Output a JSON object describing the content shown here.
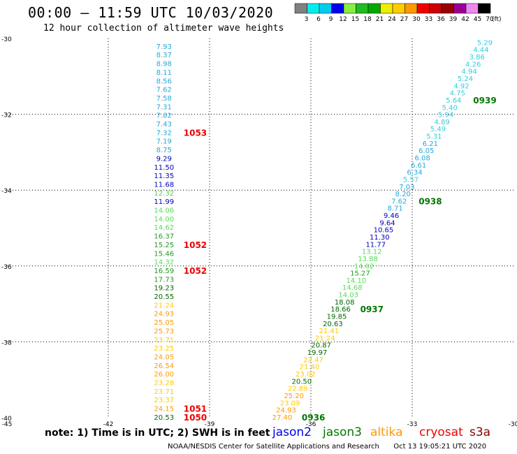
{
  "title": "00:00 – 11:59 UTC 10/03/2020",
  "subtitle": "12 hour collection of altimeter wave heights",
  "note": "note:  1) Time is in UTC;  2) SWH is in feet",
  "footer": {
    "credit": "NOAA/NESDIS Center for Satellite Applications and Research",
    "timestamp": "Oct 13 19:05:21 UTC 2020"
  },
  "satellites": [
    {
      "name": "jason2",
      "color": "#0000ee"
    },
    {
      "name": "jason3",
      "color": "#007700"
    },
    {
      "name": "altika",
      "color": "#ff9900"
    },
    {
      "name": "cryosat",
      "color": "#ee0000"
    },
    {
      "name": "s3a",
      "color": "#880000"
    }
  ],
  "colorbar": {
    "unit": "(ft)",
    "ticks": [
      "3",
      "6",
      "9",
      "12",
      "15",
      "18",
      "21",
      "24",
      "27",
      "30",
      "33",
      "36",
      "39",
      "42",
      "45",
      "70"
    ],
    "colors": [
      "#808080",
      "#00eeee",
      "#00ccee",
      "#0000ee",
      "#88ee44",
      "#22bb22",
      "#00aa00",
      "#eeee00",
      "#ffcc00",
      "#ff9900",
      "#ee0000",
      "#cc0000",
      "#990000",
      "#990099",
      "#ee88ee",
      "#000000"
    ]
  },
  "chart_data": {
    "type": "scatter",
    "xlabel": "",
    "ylabel": "",
    "xlim": [
      -45,
      -30
    ],
    "ylim": [
      -40,
      -30
    ],
    "xticks": [
      -45,
      -42,
      -39,
      -36,
      -33,
      -30
    ],
    "xtick_labels": [
      "-45",
      "-42",
      "-39",
      "-36",
      "-33",
      "-30"
    ],
    "yticks": [
      -30,
      -32,
      -34,
      -36,
      -38,
      -40
    ],
    "ytick_labels": [
      "-30",
      "-32",
      "-34",
      "-36",
      "-38",
      "-40"
    ],
    "grid": true,
    "tracks": [
      {
        "id": "west",
        "x_start": -40.35,
        "x_end": -40.35,
        "y_start": -30.2,
        "y_end": -39.98,
        "values": [
          "7.93",
          "8.37",
          "8.98",
          "8.11",
          "8.56",
          "7.62",
          "7.58",
          "7.31",
          "7.82",
          "7.43",
          "7.32",
          "7.19",
          "8.75",
          "9.29",
          "11.50",
          "11.35",
          "11.68",
          "12.32",
          "11.99",
          "14.06",
          "14.00",
          "14.62",
          "16.37",
          "15.25",
          "15.46",
          "14.32",
          "16.59",
          "17.73",
          "19.23",
          "20.55",
          "21.24",
          "24.93",
          "25.05",
          "25.73",
          "23.71",
          "23.25",
          "24.05",
          "26.54",
          "26.00",
          "23.28",
          "23.71",
          "23.37",
          "24.15",
          "20.53"
        ],
        "pass_labels": [
          {
            "text": "1053",
            "value_index": 10,
            "color": "#ee0000"
          },
          {
            "text": "1052",
            "value_index": 23,
            "color": "#ee0000"
          },
          {
            "text": "1052",
            "value_index": 26,
            "color": "#ee0000"
          },
          {
            "text": "1051",
            "value_index": 42,
            "color": "#ee0000"
          },
          {
            "text": "1050",
            "value_index": 43,
            "color": "#ee0000"
          }
        ]
      },
      {
        "id": "east",
        "x_start": -30.85,
        "x_end": -36.85,
        "y_start": -30.1,
        "y_end": -39.98,
        "values": [
          "5.29",
          "4.44",
          "3.86",
          "4.26",
          "4.94",
          "5.24",
          "4.92",
          "4.75",
          "5.64",
          "5.40",
          "5.94",
          "4.89",
          "5.49",
          "5.31",
          "6.21",
          "6.05",
          "6.08",
          "6.61",
          "6.34",
          "5.57",
          "7.03",
          "8.20",
          "7.62",
          "8.71",
          "9.46",
          "9.64",
          "10.65",
          "11.30",
          "11.77",
          "13.12",
          "13.88",
          "14.02",
          "15.27",
          "14.10",
          "14.68",
          "14.03",
          "18.08",
          "18.66",
          "19.85",
          "20.63",
          "21.41",
          "21.24",
          "20.87",
          "19.97",
          "22.47",
          "21.40",
          "23.02",
          "20.50",
          "22.89",
          "25.20",
          "23.09",
          "24.93",
          "27.40"
        ],
        "pass_labels": [
          {
            "text": "0939",
            "value_index": 8,
            "color": "#007700"
          },
          {
            "text": "0938",
            "value_index": 22,
            "color": "#007700"
          },
          {
            "text": "0937",
            "value_index": 37,
            "color": "#007700"
          },
          {
            "text": "0936",
            "value_index": 52,
            "color": "#007700"
          }
        ]
      }
    ]
  }
}
